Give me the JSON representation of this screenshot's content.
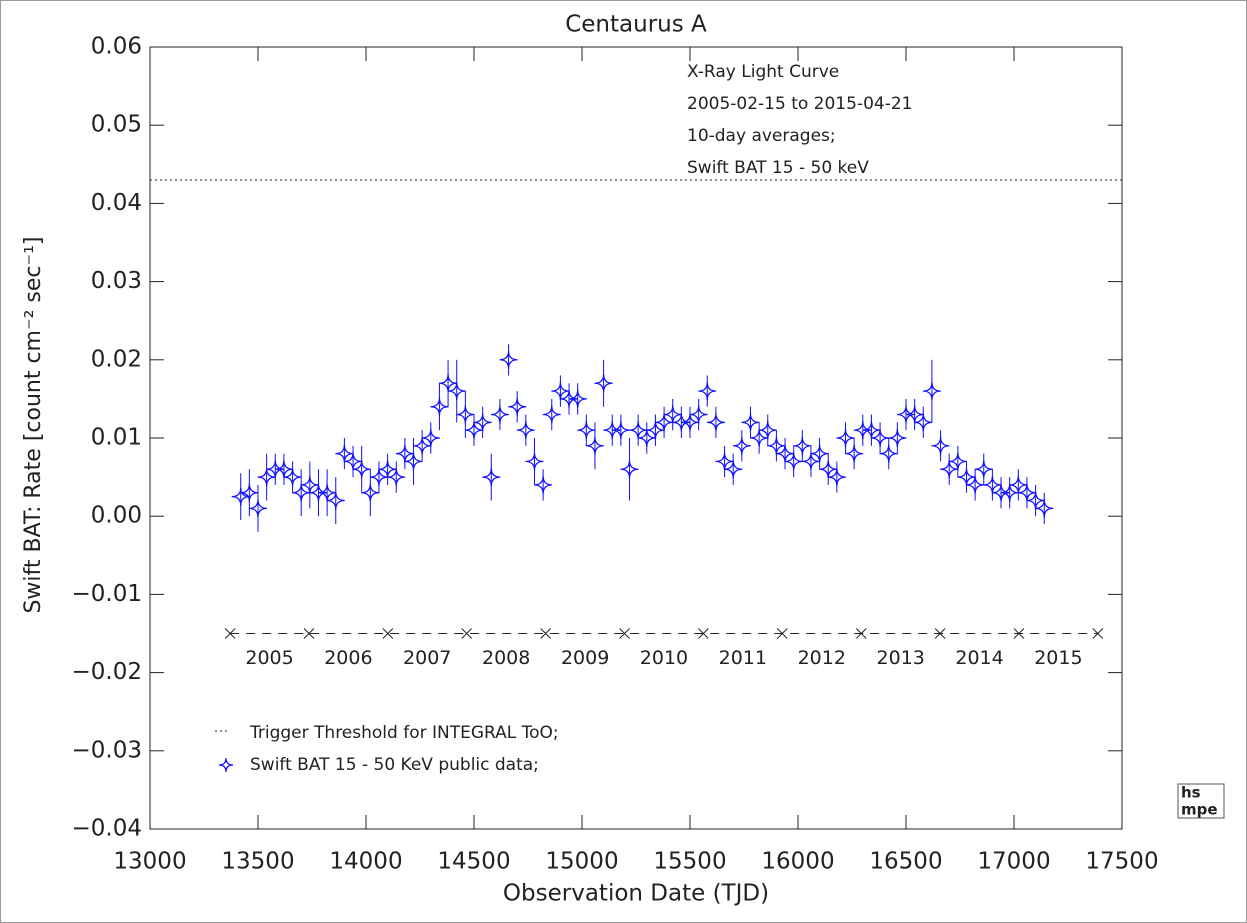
{
  "chart_data": {
    "type": "scatter",
    "title": "Centaurus A",
    "xlabel": "Observation Date (TJD)",
    "ylabel": "Swift BAT:  Rate [count cm⁻² sec⁻¹]",
    "annotations": [
      "X-Ray Light Curve",
      "2005-02-15 to 2015-04-21",
      "10-day averages;",
      "Swift BAT  15 - 50 keV"
    ],
    "xlim": [
      13000,
      17500
    ],
    "ylim": [
      -0.04,
      0.06
    ],
    "xticks": [
      13000,
      13500,
      14000,
      14500,
      15000,
      15500,
      16000,
      16500,
      17000,
      17500
    ],
    "yticks": [
      {
        "value": -0.04,
        "label": "−0.04"
      },
      {
        "value": -0.03,
        "label": "−0.03"
      },
      {
        "value": -0.02,
        "label": "−0.02"
      },
      {
        "value": -0.01,
        "label": "−0.01"
      },
      {
        "value": 0,
        "label": "0.00"
      },
      {
        "value": 0.01,
        "label": "0.01"
      },
      {
        "value": 0.02,
        "label": "0.02"
      },
      {
        "value": 0.03,
        "label": "0.03"
      },
      {
        "value": 0.04,
        "label": "0.04"
      },
      {
        "value": 0.05,
        "label": "0.05"
      },
      {
        "value": 0.06,
        "label": "0.06"
      }
    ],
    "threshold": {
      "name": "Trigger Threshold for INTEGRAL ToO;",
      "value": 0.043
    },
    "year_markers": {
      "y": -0.015,
      "x": [
        13371,
        13736,
        14101,
        14466,
        14832,
        15197,
        15562,
        15927,
        16293,
        16658,
        17023,
        17388
      ],
      "labels": [
        "2005",
        "2006",
        "2007",
        "2008",
        "2009",
        "2010",
        "2011",
        "2012",
        "2013",
        "2014",
        "2015"
      ]
    },
    "logo": [
      "hs",
      "mpe"
    ],
    "series": [
      {
        "name": "Swift BAT 15 - 50 KeV public data;",
        "color": "#1010ff",
        "x": [
          13420,
          13460,
          13500,
          13540,
          13580,
          13620,
          13660,
          13700,
          13740,
          13780,
          13820,
          13860,
          13900,
          13940,
          13980,
          14020,
          14060,
          14100,
          14140,
          14180,
          14220,
          14260,
          14300,
          14340,
          14380,
          14420,
          14460,
          14500,
          14540,
          14580,
          14620,
          14660,
          14700,
          14740,
          14780,
          14820,
          14860,
          14900,
          14940,
          14980,
          15020,
          15060,
          15100,
          15140,
          15180,
          15220,
          15260,
          15300,
          15340,
          15380,
          15420,
          15460,
          15500,
          15540,
          15580,
          15620,
          15660,
          15700,
          15740,
          15780,
          15820,
          15860,
          15900,
          15940,
          15980,
          16020,
          16060,
          16100,
          16140,
          16180,
          16220,
          16260,
          16300,
          16340,
          16380,
          16420,
          16460,
          16500,
          16540,
          16580,
          16620,
          16660,
          16700,
          16740,
          16780,
          16820,
          16860,
          16900,
          16940,
          16980,
          17020,
          17060,
          17100,
          17140
        ],
        "values": [
          0.0025,
          0.003,
          0.001,
          0.005,
          0.006,
          0.006,
          0.005,
          0.003,
          0.004,
          0.003,
          0.003,
          0.002,
          0.008,
          0.007,
          0.006,
          0.003,
          0.005,
          0.006,
          0.005,
          0.008,
          0.007,
          0.009,
          0.01,
          0.014,
          0.017,
          0.016,
          0.013,
          0.011,
          0.012,
          0.005,
          0.013,
          0.02,
          0.014,
          0.011,
          0.007,
          0.004,
          0.013,
          0.016,
          0.015,
          0.015,
          0.011,
          0.009,
          0.017,
          0.011,
          0.011,
          0.006,
          0.011,
          0.01,
          0.011,
          0.012,
          0.013,
          0.012,
          0.012,
          0.013,
          0.016,
          0.012,
          0.007,
          0.006,
          0.009,
          0.012,
          0.01,
          0.011,
          0.009,
          0.008,
          0.007,
          0.009,
          0.007,
          0.008,
          0.006,
          0.005,
          0.01,
          0.008,
          0.011,
          0.011,
          0.01,
          0.008,
          0.01,
          0.013,
          0.013,
          0.012,
          0.016,
          0.009,
          0.006,
          0.007,
          0.005,
          0.004,
          0.006,
          0.004,
          0.003,
          0.003,
          0.004,
          0.003,
          0.002,
          0.001
        ],
        "errors": [
          0.003,
          0.003,
          0.003,
          0.003,
          0.002,
          0.002,
          0.002,
          0.003,
          0.003,
          0.003,
          0.003,
          0.003,
          0.002,
          0.002,
          0.003,
          0.003,
          0.002,
          0.002,
          0.002,
          0.002,
          0.003,
          0.002,
          0.002,
          0.003,
          0.003,
          0.004,
          0.003,
          0.002,
          0.002,
          0.003,
          0.002,
          0.002,
          0.002,
          0.002,
          0.003,
          0.002,
          0.002,
          0.002,
          0.002,
          0.002,
          0.002,
          0.003,
          0.003,
          0.002,
          0.002,
          0.004,
          0.002,
          0.002,
          0.002,
          0.002,
          0.002,
          0.002,
          0.002,
          0.002,
          0.002,
          0.002,
          0.002,
          0.002,
          0.002,
          0.002,
          0.002,
          0.002,
          0.002,
          0.002,
          0.002,
          0.002,
          0.002,
          0.002,
          0.002,
          0.002,
          0.002,
          0.002,
          0.002,
          0.002,
          0.002,
          0.002,
          0.002,
          0.002,
          0.002,
          0.002,
          0.004,
          0.002,
          0.002,
          0.002,
          0.002,
          0.002,
          0.002,
          0.002,
          0.002,
          0.002,
          0.002,
          0.002,
          0.002,
          0.002
        ]
      }
    ]
  }
}
